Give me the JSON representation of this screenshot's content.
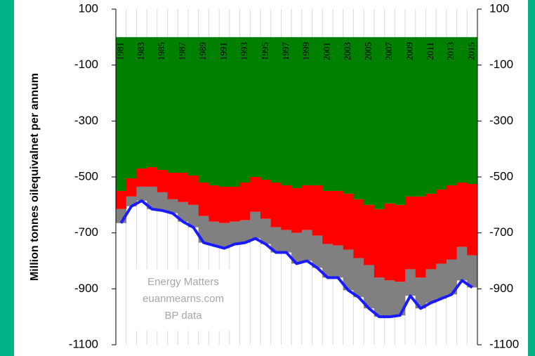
{
  "chart_data": {
    "type": "stacked-bar-line",
    "y_label": "Million tonnes oilequivalnet per annum",
    "annotations": [
      "Energy Matters",
      "euanmearns.com",
      "BP data"
    ],
    "categories": [
      "1981",
      null,
      "1983",
      null,
      "1985",
      null,
      "1987",
      null,
      "1989",
      null,
      "1991",
      null,
      "1993",
      null,
      "1995",
      null,
      "1997",
      null,
      "1999",
      null,
      "2001",
      null,
      "2003",
      null,
      "2005",
      null,
      "2007",
      null,
      "2009",
      null,
      "2011",
      null,
      "2013",
      null,
      "2015"
    ],
    "series": [
      {
        "color": "#008000",
        "values": [
          -550,
          -505,
          -470,
          -465,
          -475,
          -485,
          -485,
          -495,
          -520,
          -530,
          -535,
          -535,
          -520,
          -500,
          -510,
          -520,
          -530,
          -540,
          -530,
          -530,
          -550,
          -550,
          -560,
          -580,
          -600,
          -615,
          -595,
          -600,
          -570,
          -570,
          -560,
          -545,
          -530,
          -520,
          -525
        ]
      },
      {
        "color": "#ff0000",
        "values": [
          -65,
          -65,
          -65,
          -70,
          -80,
          -95,
          -105,
          -105,
          -120,
          -130,
          -130,
          -125,
          -135,
          -125,
          -140,
          -160,
          -160,
          -160,
          -160,
          -180,
          -190,
          -195,
          -200,
          -210,
          -215,
          -245,
          -275,
          -275,
          -260,
          -290,
          -270,
          -265,
          -265,
          -230,
          -255
        ]
      },
      {
        "color": "#808080",
        "values": [
          -50,
          -35,
          -50,
          -80,
          -65,
          -50,
          -70,
          -80,
          -95,
          -85,
          -90,
          -80,
          -80,
          -95,
          -90,
          -90,
          -80,
          -110,
          -110,
          -115,
          -120,
          -115,
          -145,
          -140,
          -155,
          -140,
          -130,
          -120,
          -95,
          -110,
          -120,
          -125,
          -125,
          -120,
          -115
        ]
      },
      {
        "color": "#1a1aff",
        "line": true,
        "values": [
          -665,
          -605,
          -585,
          -615,
          -620,
          -630,
          -660,
          -680,
          -735,
          -745,
          -755,
          -740,
          -735,
          -720,
          -740,
          -770,
          -770,
          -810,
          -800,
          -825,
          -860,
          -860,
          -905,
          -930,
          -970,
          -1000,
          -1000,
          -995,
          -925,
          -970,
          -950,
          -935,
          -920,
          -870,
          -895
        ]
      }
    ],
    "ylim": [
      -1100,
      100
    ],
    "yticks": [
      100,
      -100,
      -300,
      -500,
      -700,
      -900,
      -1100
    ],
    "y2lim": [
      -1100,
      100
    ],
    "y2ticks": [
      100,
      -100,
      -300,
      -500,
      -700,
      -900,
      -1100
    ],
    "grid": true
  }
}
